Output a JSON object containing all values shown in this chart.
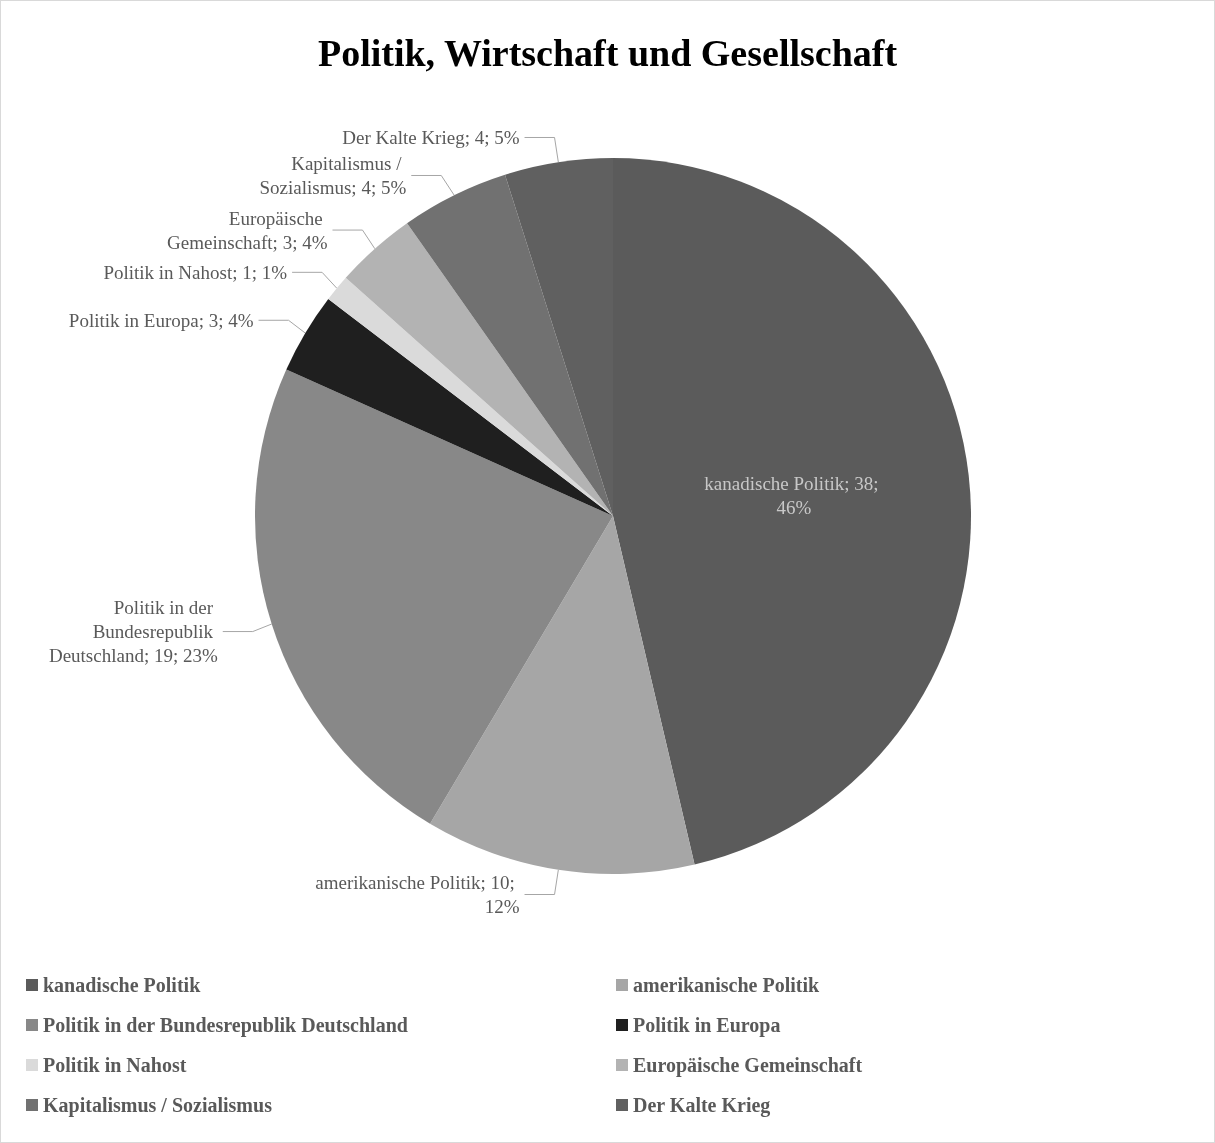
{
  "chart_data": {
    "type": "pie",
    "title": "Politik, Wirtschaft und Gesellschaft",
    "categories": [
      "kanadische Politik",
      "amerikanische Politik",
      "Politik in der Bundesrepublik Deutschland",
      "Politik in Europa",
      "Politik in Nahost",
      "Europäische Gemeinschaft",
      "Kapitalismus / Sozialismus",
      "Der Kalte Krieg"
    ],
    "values": [
      38,
      10,
      19,
      3,
      1,
      3,
      4,
      4
    ],
    "value_labels": [
      "kanadische Politik; 38; 46%",
      "amerikanische Politik; 10; 12%",
      "Politik in der Bundesrepublik Deutschland; 19; 23%",
      "Politik in Europa; 3; 4%",
      "Politik in Nahost; 1; 1%",
      "Europäische Gemeinschaft; 3; 4%",
      "Kapitalismus / Sozialismus; 4; 5%",
      "Der Kalte Krieg; 4; 5%"
    ],
    "colors": [
      "#5b5b5b",
      "#a6a6a6",
      "#888888",
      "#1f1f1f",
      "#dadada",
      "#b3b3b3",
      "#717171",
      "#606060"
    ],
    "legend": "bottom"
  }
}
